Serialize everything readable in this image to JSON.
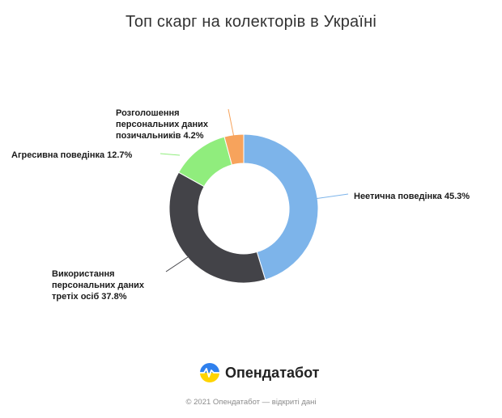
{
  "title": "Топ скарг на колекторів в Україні",
  "brand": {
    "name": "Опендатабот"
  },
  "footer": "© 2021 Опендатабот — відкриті дані",
  "chart_data": {
    "type": "pie",
    "donut": true,
    "title": "Топ скарг на колекторів в Україні",
    "slices": [
      {
        "label": "Неетична поведінка",
        "value": 45.3,
        "color": "#7db4ea",
        "label_lines": [
          "Неетична поведінка 45.3%"
        ]
      },
      {
        "label": "Використання персональних даних третіх осіб",
        "value": 37.8,
        "color": "#434348",
        "label_lines": [
          "Використання",
          "персональних даних",
          "третіх осіб 37.8%"
        ]
      },
      {
        "label": "Агресивна поведінка",
        "value": 12.7,
        "color": "#90ed7d",
        "label_lines": [
          "Агресивна поведінка 12.7%"
        ]
      },
      {
        "label": "Розголошення персональних даних позичальників",
        "value": 4.2,
        "color": "#f7a35c",
        "label_lines": [
          "Розголошення",
          "персональних даних",
          "позичальників 4.2%"
        ]
      }
    ],
    "legend": "none",
    "units": "%"
  }
}
